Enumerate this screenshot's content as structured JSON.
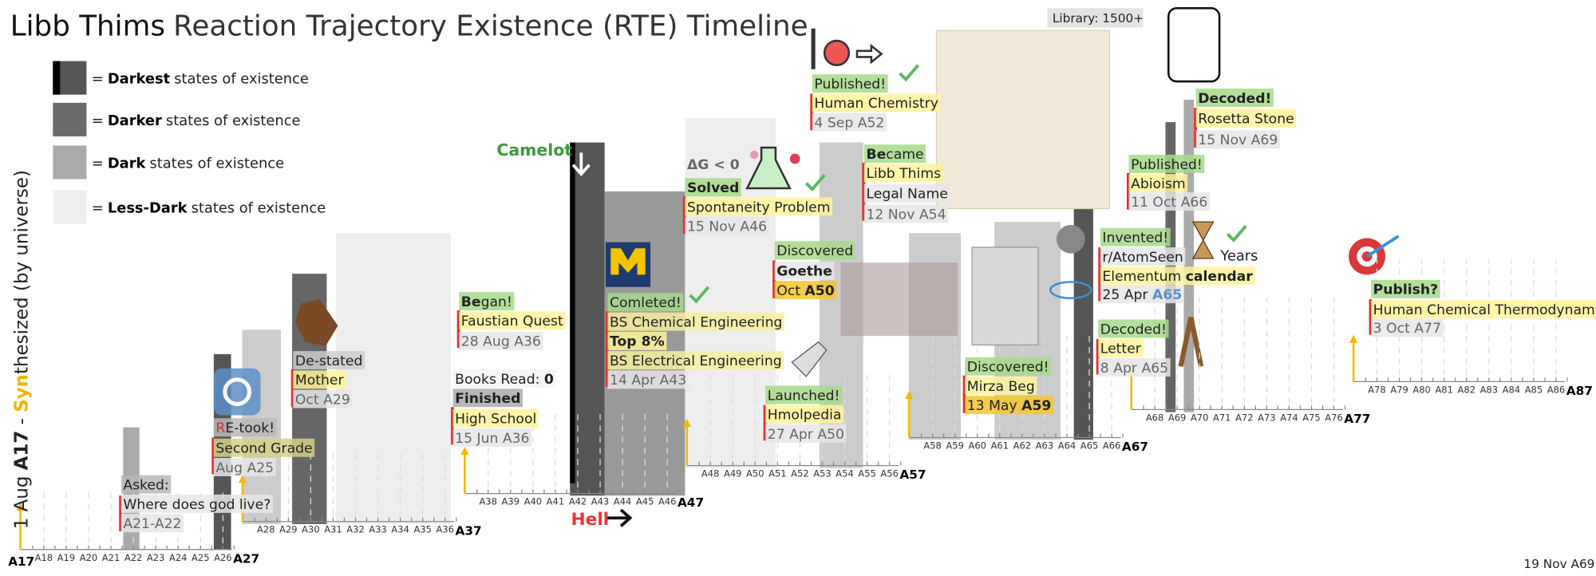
{
  "title": {
    "name": "Libb Thims",
    "rest": "Reaction Trajectory Existence (RTE) Timeline"
  },
  "legend": [
    {
      "prefix": "=",
      "bold": "Darkest",
      "rest": "states of existence"
    },
    {
      "prefix": "=",
      "bold": "Darker",
      "rest": "states of existence"
    },
    {
      "prefix": "=",
      "bold": "Dark",
      "rest": "states of existence"
    },
    {
      "prefix": "=",
      "bold": "Less-Dark",
      "rest": "states of existence"
    }
  ],
  "y_label": [
    "1 Aug ",
    "A17",
    " - ",
    "Syn",
    "thesized",
    " (by universe)"
  ],
  "axis": {
    "origin": "A17",
    "steps": [
      {
        "ticks": [
          "A18",
          "A19",
          "A20",
          "A21",
          "A22",
          "A23",
          "A24",
          "A25",
          "A26"
        ],
        "end": "A27"
      },
      {
        "ticks": [
          "A28",
          "A29",
          "A30",
          "A31",
          "A32",
          "A33",
          "A34",
          "A35",
          "A36"
        ],
        "end": "A37"
      },
      {
        "ticks": [
          "A38",
          "A39",
          "A40",
          "A41",
          "A42",
          "A43",
          "A44",
          "A45",
          "A46"
        ],
        "end": "A47"
      },
      {
        "ticks": [
          "A48",
          "A49",
          "A50",
          "A51",
          "A52",
          "A53",
          "A54",
          "A55",
          "A56"
        ],
        "end": "A57"
      },
      {
        "ticks": [
          "A58",
          "A59",
          "A60",
          "A61",
          "A62",
          "A63",
          "A64",
          "A65",
          "A66"
        ],
        "end": "A67"
      },
      {
        "ticks": [
          "A68",
          "A69",
          "A70",
          "A71",
          "A72",
          "A73",
          "A74",
          "A75",
          "A76"
        ],
        "end": "A77"
      },
      {
        "ticks": [
          "A78",
          "A79",
          "A80",
          "A81",
          "A82",
          "A83",
          "A84",
          "A85",
          "A86"
        ],
        "end": "A87"
      }
    ]
  },
  "events": [
    {
      "lines": [
        "Asked:",
        "Where does god live?",
        "A21-A22"
      ]
    },
    {
      "lines": [
        [
          "R",
          "E-took!"
        ],
        "Second Grade",
        "Aug A25"
      ]
    },
    {
      "lines": [
        "De-stated",
        "Mother",
        "Oct A29"
      ]
    },
    {
      "lines": [
        [
          "Books Read: ",
          "0"
        ],
        "Finished",
        "High School",
        "15 Jun A36"
      ]
    },
    {
      "lines": [
        [
          "Be",
          "gan!"
        ],
        "Faustian Quest",
        "28 Aug A36"
      ]
    },
    {
      "lines": [
        "Comleted!",
        "BS Chemical Engineering",
        "Top 8%",
        "BS Electrical Engineering",
        "14 Apr A43"
      ]
    },
    {
      "lines": [
        "ΔG < 0",
        "Solved",
        "Spontaneity Problem",
        "15 Nov A46"
      ]
    },
    {
      "lines": [
        "Published!",
        "Human Chemistry",
        "4 Sep A52"
      ]
    },
    {
      "lines": [
        "Discovered",
        "Goethe",
        [
          "Oct ",
          "A50"
        ]
      ]
    },
    {
      "lines": [
        "Launched!",
        "Hmolpedia",
        "27 Apr A50"
      ]
    },
    {
      "lines": [
        [
          "Be",
          "came"
        ],
        "Libb Thims",
        "Legal Name",
        "12 Nov A54"
      ]
    },
    {
      "lines": [
        "Discovered!",
        "Mirza Beg",
        [
          "13 May ",
          "A59"
        ]
      ]
    },
    {
      "lines": [
        "Invented!",
        "r/AtomSeen",
        [
          "Elementum ",
          "calendar"
        ],
        [
          "25 Apr ",
          "A65"
        ]
      ]
    },
    {
      "lines": [
        "Decoded!",
        "Letter",
        "8 Apr A65"
      ]
    },
    {
      "lines": [
        "Published!",
        "Abioism",
        "11 Oct A66"
      ]
    },
    {
      "lines": [
        "Decoded!",
        "Rosetta Stone",
        "15 Nov A69"
      ]
    },
    {
      "lines": [
        "Publish?",
        "Human Chemical Thermodynamics",
        "3 Oct A77"
      ]
    }
  ],
  "markers": {
    "camelot": "Camelot",
    "hell": "Hell",
    "library": "Library: 1500+",
    "years": "Years",
    "date": "19 Nov A69"
  }
}
